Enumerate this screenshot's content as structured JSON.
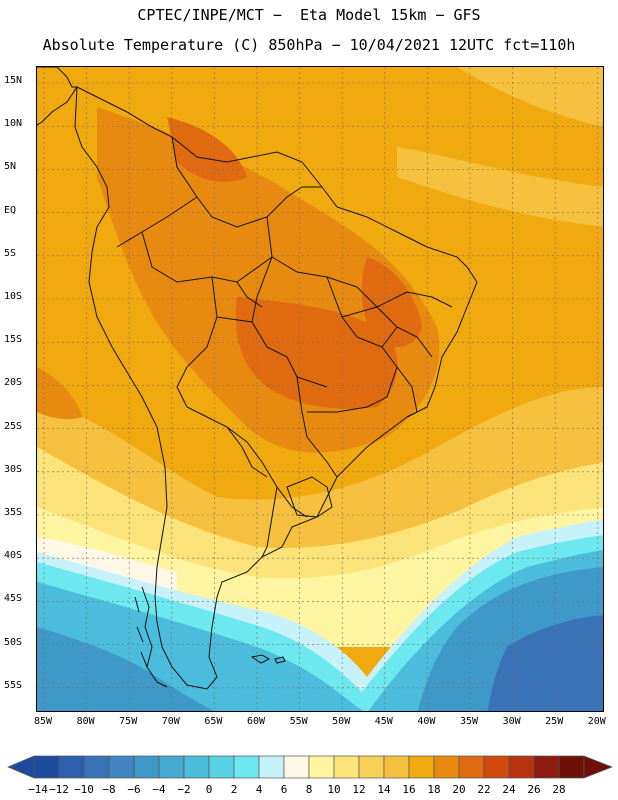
{
  "header": {
    "line1": "CPTEC/INPE/MCT −  Eta Model 15km − GFS",
    "line2": "Absolute Temperature (C) 850hPa − 10/04/2021 12UTC fct=110h"
  },
  "map": {
    "lat_labels": [
      "15N",
      "10N",
      "5N",
      "EQ",
      "5S",
      "10S",
      "15S",
      "20S",
      "25S",
      "30S",
      "35S",
      "40S",
      "45S",
      "50S",
      "55S"
    ],
    "lon_labels": [
      "85W",
      "80W",
      "75W",
      "70W",
      "65W",
      "60W",
      "55W",
      "50W",
      "45W",
      "40W",
      "35W",
      "30W",
      "25W",
      "20W"
    ]
  },
  "colorbar": {
    "labels": [
      "−14",
      "−12",
      "−10",
      "−8",
      "−6",
      "−4",
      "−2",
      "0",
      "2",
      "4",
      "6",
      "8",
      "10",
      "12",
      "14",
      "16",
      "18",
      "20",
      "22",
      "24",
      "26",
      "28"
    ],
    "colors": [
      "#1e4a9c",
      "#2e5fae",
      "#3a72b8",
      "#4186c2",
      "#3e98c8",
      "#45a9d2",
      "#4cbcdc",
      "#5ad2e6",
      "#6ee8f0",
      "#c8f2fa",
      "#fff8e6",
      "#fff4a0",
      "#fce47a",
      "#f8d258",
      "#f4c03e",
      "#f0aa10",
      "#e88a10",
      "#e06a10",
      "#d04a10",
      "#b83210",
      "#8c1a0e",
      "#6e1008"
    ]
  },
  "field_colors": {
    "warm_orange": "#f0aa10",
    "dark_orange": "#e88a10",
    "hot": "#e06a10",
    "light_orange": "#f4c03e",
    "yellow": "#fce47a",
    "pale_yellow": "#fff4a0",
    "cream": "#fff8e6",
    "ice": "#c8f2fa",
    "cyan": "#6ee8f0",
    "sky": "#4cbcdc",
    "blue": "#3e98c8",
    "deep_blue": "#3a72b8"
  }
}
